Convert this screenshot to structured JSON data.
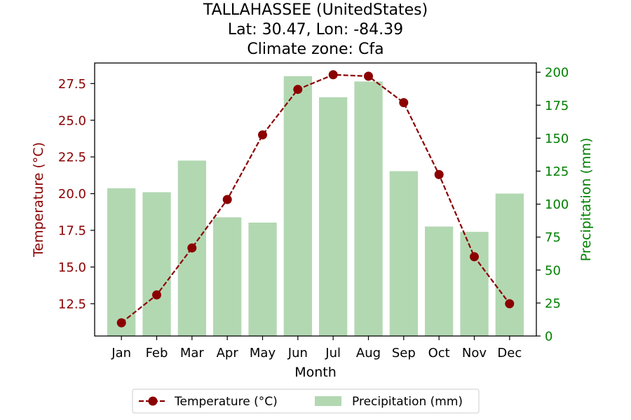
{
  "chart_data": {
    "type": "bar+line",
    "title_lines": [
      "TALLAHASSEE (UnitedStates)",
      "Lat: 30.47, Lon: -84.39",
      "Climate zone: Cfa"
    ],
    "xlabel": "Month",
    "categories": [
      "Jan",
      "Feb",
      "Mar",
      "Apr",
      "May",
      "Jun",
      "Jul",
      "Aug",
      "Sep",
      "Oct",
      "Nov",
      "Dec"
    ],
    "left_axis": {
      "label": "Temperature (°C)",
      "color": "#8b0000",
      "ylim": [
        10.3,
        28.9
      ],
      "ticks": [
        12.5,
        15.0,
        17.5,
        20.0,
        22.5,
        25.0,
        27.5
      ],
      "tick_labels": [
        "12.5",
        "15.0",
        "17.5",
        "20.0",
        "22.5",
        "25.0",
        "27.5"
      ]
    },
    "right_axis": {
      "label": "Precipitation (mm)",
      "color": "#008000",
      "ylim": [
        0,
        207
      ],
      "ticks": [
        0,
        25,
        50,
        75,
        100,
        125,
        150,
        175,
        200
      ],
      "tick_labels": [
        "0",
        "25",
        "50",
        "75",
        "100",
        "125",
        "150",
        "175",
        "200"
      ]
    },
    "series": [
      {
        "name": "Temperature (°C)",
        "kind": "line",
        "axis": "left",
        "color": "#8b0000",
        "style": "dashed-with-markers",
        "values": [
          11.2,
          13.1,
          16.3,
          19.6,
          24.0,
          27.1,
          28.1,
          28.0,
          26.2,
          21.3,
          15.7,
          12.5
        ]
      },
      {
        "name": "Precipitation (mm)",
        "kind": "bar",
        "axis": "right",
        "color": "#b2d8b2",
        "values": [
          112,
          109,
          133,
          90,
          86,
          197,
          181,
          193,
          125,
          83,
          79,
          108
        ]
      }
    ],
    "legend": {
      "placement": "bottom-center",
      "entries": [
        "Temperature (°C)",
        "Precipitation (mm)"
      ]
    },
    "grid": false
  }
}
